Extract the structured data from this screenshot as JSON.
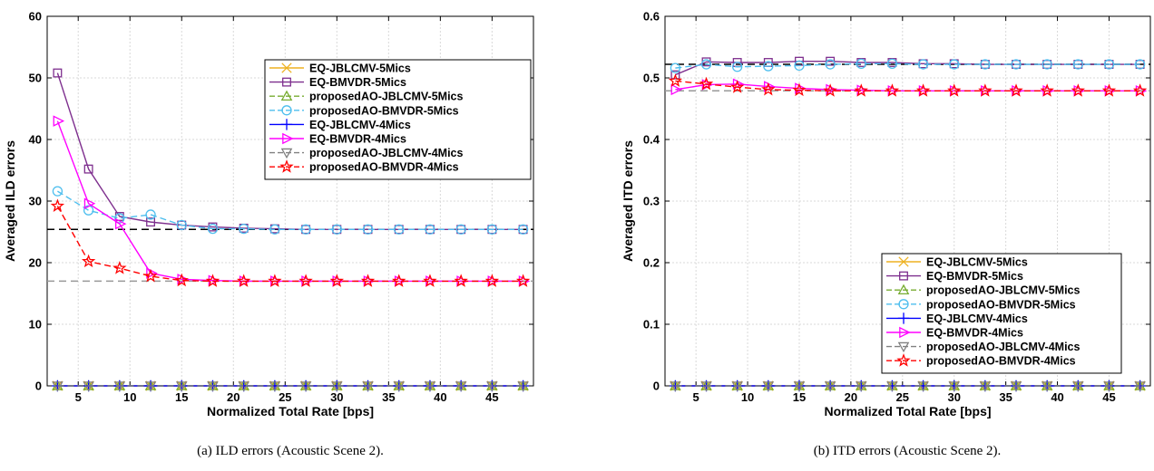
{
  "series_styles": [
    {
      "color": "#EDB120",
      "marker": "x",
      "dash": false
    },
    {
      "color": "#7E2F8E",
      "marker": "square",
      "dash": false
    },
    {
      "color": "#77AC30",
      "marker": "triangle-up",
      "dash": true
    },
    {
      "color": "#4DBEEE",
      "marker": "circle",
      "dash": true
    },
    {
      "color": "#0000FF",
      "marker": "plus",
      "dash": false
    },
    {
      "color": "#FF00FF",
      "marker": "triangle-right",
      "dash": false
    },
    {
      "color": "#808080",
      "marker": "triangle-down",
      "dash": true
    },
    {
      "color": "#FF0000",
      "marker": "star",
      "dash": true
    }
  ],
  "chart_data": [
    {
      "type": "line",
      "caption": "(a) ILD errors (Acoustic Scene 2).",
      "xlabel": "Normalized Total Rate [bps]",
      "ylabel": "Averaged ILD errors",
      "xlim": [
        2,
        49
      ],
      "ylim": [
        0,
        60
      ],
      "xticks": [
        5,
        10,
        15,
        20,
        25,
        30,
        35,
        40,
        45
      ],
      "yticks": [
        0,
        10,
        20,
        30,
        40,
        50,
        60
      ],
      "grid": true,
      "legend_position": "top-right",
      "x": [
        3,
        6,
        9,
        12,
        15,
        18,
        21,
        24,
        27,
        30,
        33,
        36,
        39,
        42,
        45,
        48
      ],
      "reference_lines": [
        {
          "y": 25.4,
          "color": "#000000",
          "dash": true
        },
        {
          "y": 17.0,
          "color": "#999999",
          "dash": true
        }
      ],
      "series": [
        {
          "name": "EQ-JBLCMV-5Mics",
          "values": [
            0,
            0,
            0,
            0,
            0,
            0,
            0,
            0,
            0,
            0,
            0,
            0,
            0,
            0,
            0,
            0
          ]
        },
        {
          "name": "EQ-BMVDR-5Mics",
          "values": [
            50.8,
            35.2,
            27.5,
            26.6,
            26.1,
            25.8,
            25.6,
            25.5,
            25.4,
            25.4,
            25.4,
            25.4,
            25.4,
            25.4,
            25.4,
            25.4
          ]
        },
        {
          "name": "proposedAO-JBLCMV-5Mics",
          "values": [
            0,
            0,
            0,
            0,
            0,
            0,
            0,
            0,
            0,
            0,
            0,
            0,
            0,
            0,
            0,
            0
          ]
        },
        {
          "name": "proposedAO-BMVDR-5Mics",
          "values": [
            31.6,
            28.5,
            27.2,
            27.8,
            26.1,
            25.5,
            25.5,
            25.4,
            25.4,
            25.4,
            25.4,
            25.4,
            25.4,
            25.4,
            25.4,
            25.4
          ]
        },
        {
          "name": "EQ-JBLCMV-4Mics",
          "values": [
            0,
            0,
            0,
            0,
            0,
            0,
            0,
            0,
            0,
            0,
            0,
            0,
            0,
            0,
            0,
            0
          ]
        },
        {
          "name": "EQ-BMVDR-4Mics",
          "values": [
            43.0,
            29.6,
            26.3,
            18.3,
            17.3,
            17.1,
            17.0,
            17.0,
            17.0,
            17.0,
            17.0,
            17.0,
            17.0,
            17.0,
            17.0,
            17.0
          ]
        },
        {
          "name": "proposedAO-JBLCMV-4Mics",
          "values": [
            0,
            0,
            0,
            0,
            0,
            0,
            0,
            0,
            0,
            0,
            0,
            0,
            0,
            0,
            0,
            0
          ]
        },
        {
          "name": "proposedAO-BMVDR-4Mics",
          "values": [
            29.2,
            20.2,
            19.1,
            17.8,
            17.1,
            17.0,
            17.0,
            17.0,
            17.0,
            17.0,
            17.0,
            17.0,
            17.0,
            17.0,
            17.0,
            17.0
          ]
        }
      ]
    },
    {
      "type": "line",
      "caption": "(b) ITD errors (Acoustic Scene 2).",
      "xlabel": "Normalized Total Rate [bps]",
      "ylabel": "Averaged ITD errors",
      "xlim": [
        2,
        49
      ],
      "ylim": [
        0,
        0.6
      ],
      "xticks": [
        5,
        10,
        15,
        20,
        25,
        30,
        35,
        40,
        45
      ],
      "yticks": [
        0,
        0.1,
        0.2,
        0.3,
        0.4,
        0.5,
        0.6
      ],
      "grid": true,
      "legend_position": "bottom-right",
      "x": [
        3,
        6,
        9,
        12,
        15,
        18,
        21,
        24,
        27,
        30,
        33,
        36,
        39,
        42,
        45,
        48
      ],
      "reference_lines": [
        {
          "y": 0.522,
          "color": "#000000",
          "dash": true
        },
        {
          "y": 0.479,
          "color": "#999999",
          "dash": true
        }
      ],
      "series": [
        {
          "name": "EQ-JBLCMV-5Mics",
          "values": [
            0,
            0,
            0,
            0,
            0,
            0,
            0,
            0,
            0,
            0,
            0,
            0,
            0,
            0,
            0,
            0
          ]
        },
        {
          "name": "EQ-BMVDR-5Mics",
          "values": [
            0.505,
            0.526,
            0.525,
            0.525,
            0.527,
            0.527,
            0.525,
            0.525,
            0.523,
            0.523,
            0.522,
            0.522,
            0.522,
            0.522,
            0.522,
            0.522
          ]
        },
        {
          "name": "proposedAO-JBLCMV-5Mics",
          "values": [
            0,
            0,
            0,
            0,
            0,
            0,
            0,
            0,
            0,
            0,
            0,
            0,
            0,
            0,
            0,
            0
          ]
        },
        {
          "name": "proposedAO-BMVDR-5Mics",
          "values": [
            0.516,
            0.522,
            0.518,
            0.519,
            0.52,
            0.522,
            0.523,
            0.523,
            0.522,
            0.522,
            0.522,
            0.522,
            0.522,
            0.522,
            0.522,
            0.522
          ]
        },
        {
          "name": "EQ-JBLCMV-4Mics",
          "values": [
            0,
            0,
            0,
            0,
            0,
            0,
            0,
            0,
            0,
            0,
            0,
            0,
            0,
            0,
            0,
            0
          ]
        },
        {
          "name": "EQ-BMVDR-4Mics",
          "values": [
            0.481,
            0.489,
            0.49,
            0.486,
            0.483,
            0.481,
            0.48,
            0.479,
            0.479,
            0.479,
            0.479,
            0.479,
            0.479,
            0.479,
            0.479,
            0.479
          ]
        },
        {
          "name": "proposedAO-JBLCMV-4Mics",
          "values": [
            0,
            0,
            0,
            0,
            0,
            0,
            0,
            0,
            0,
            0,
            0,
            0,
            0,
            0,
            0,
            0
          ]
        },
        {
          "name": "proposedAO-BMVDR-4Mics",
          "values": [
            0.495,
            0.49,
            0.485,
            0.481,
            0.48,
            0.479,
            0.479,
            0.479,
            0.479,
            0.479,
            0.479,
            0.479,
            0.479,
            0.479,
            0.479,
            0.479
          ]
        }
      ]
    }
  ]
}
